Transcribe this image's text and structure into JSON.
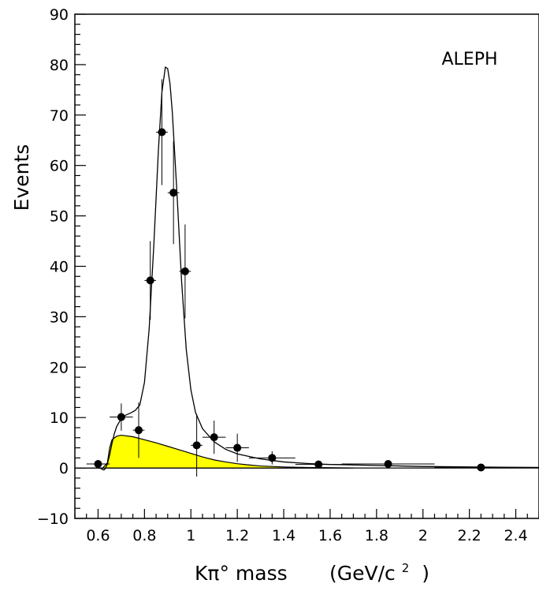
{
  "chart_data": {
    "type": "scatter",
    "title": "",
    "annotation": "ALEPH",
    "xlabel": "Kπ° mass",
    "xlabel_units": "(GeV/c",
    "xlabel_units_sup": "2",
    "xlabel_units_close": ")",
    "ylabel": "Events",
    "xlim": [
      0.5,
      2.5
    ],
    "ylim": [
      -10,
      90
    ],
    "grid": false,
    "x_ticks": [
      0.6,
      0.8,
      1,
      1.2,
      1.4,
      1.6,
      1.8,
      2,
      2.2,
      2.4
    ],
    "x_tick_labels": [
      "0.6",
      "0.8",
      "1",
      "1.2",
      "1.4",
      "1.6",
      "1.8",
      "2",
      "2.2",
      "2.4"
    ],
    "y_ticks": [
      -10,
      0,
      10,
      20,
      30,
      40,
      50,
      60,
      70,
      80,
      90
    ],
    "y_tick_labels": [
      "−10",
      "0",
      "10",
      "20",
      "30",
      "40",
      "50",
      "60",
      "70",
      "80",
      "90"
    ],
    "series": [
      {
        "type": "points_with_errors",
        "points": [
          {
            "x": 0.6,
            "y": 0.8,
            "xerr": 0.05,
            "yerr": 0.6
          },
          {
            "x": 0.7,
            "y": 10.1,
            "xerr": 0.05,
            "yerr": 2.7
          },
          {
            "x": 0.775,
            "y": 7.5,
            "xerr": 0.025,
            "yerr": 5.5
          },
          {
            "x": 0.825,
            "y": 37.2,
            "xerr": 0.025,
            "yerr": 7.8
          },
          {
            "x": 0.875,
            "y": 66.6,
            "xerr": 0.025,
            "yerr": 10.5
          },
          {
            "x": 0.925,
            "y": 54.6,
            "xerr": 0.025,
            "yerr": 10.2
          },
          {
            "x": 0.975,
            "y": 39.0,
            "xerr": 0.025,
            "yerr": 9.3
          },
          {
            "x": 1.025,
            "y": 4.5,
            "xerr": 0.025,
            "yerr": 6.2
          },
          {
            "x": 1.1,
            "y": 6.1,
            "xerr": 0.05,
            "yerr": 3.3
          },
          {
            "x": 1.2,
            "y": 4.0,
            "xerr": 0.05,
            "yerr": 2.8
          },
          {
            "x": 1.35,
            "y": 2.0,
            "xerr": 0.1,
            "yerr": 1.3
          },
          {
            "x": 1.55,
            "y": 0.7,
            "xerr": 0.1,
            "yerr": 0.8
          },
          {
            "x": 1.85,
            "y": 0.8,
            "xerr": 0.2,
            "yerr": 0.4
          },
          {
            "x": 2.25,
            "y": 0.1,
            "xerr": 0.2,
            "yerr": 0.2
          }
        ]
      },
      {
        "type": "fit_curve",
        "points": [
          [
            0.5,
            0.0
          ],
          [
            0.6,
            0.0
          ],
          [
            0.61,
            -0.05
          ],
          [
            0.62,
            -0.3
          ],
          [
            0.625,
            -0.4
          ],
          [
            0.63,
            -0.2
          ],
          [
            0.64,
            0.8
          ],
          [
            0.65,
            2.6
          ],
          [
            0.66,
            4.9
          ],
          [
            0.67,
            6.8
          ],
          [
            0.68,
            8.2
          ],
          [
            0.7,
            9.8
          ],
          [
            0.72,
            10.5
          ],
          [
            0.74,
            10.9
          ],
          [
            0.76,
            11.4
          ],
          [
            0.78,
            12.5
          ],
          [
            0.8,
            17.0
          ],
          [
            0.82,
            27.5
          ],
          [
            0.84,
            44.0
          ],
          [
            0.86,
            63.0
          ],
          [
            0.875,
            74.5
          ],
          [
            0.89,
            79.5
          ],
          [
            0.9,
            79.2
          ],
          [
            0.91,
            76.2
          ],
          [
            0.92,
            70.5
          ],
          [
            0.94,
            54.5
          ],
          [
            0.96,
            37.0
          ],
          [
            0.98,
            23.5
          ],
          [
            1.0,
            15.5
          ],
          [
            1.02,
            11.0
          ],
          [
            1.05,
            7.8
          ],
          [
            1.1,
            5.2
          ],
          [
            1.15,
            3.7
          ],
          [
            1.2,
            2.8
          ],
          [
            1.3,
            1.8
          ],
          [
            1.4,
            1.2
          ],
          [
            1.5,
            0.9
          ],
          [
            1.6,
            0.7
          ],
          [
            1.8,
            0.5
          ],
          [
            2.0,
            0.3
          ],
          [
            2.2,
            0.2
          ],
          [
            2.5,
            0.1
          ]
        ]
      },
      {
        "type": "background_area",
        "color": "#ffff00",
        "points": [
          [
            0.62,
            0.0
          ],
          [
            0.64,
            1.0
          ],
          [
            0.65,
            4.0
          ],
          [
            0.66,
            5.6
          ],
          [
            0.68,
            6.3
          ],
          [
            0.7,
            6.5
          ],
          [
            0.75,
            6.2
          ],
          [
            0.8,
            5.6
          ],
          [
            0.85,
            5.0
          ],
          [
            0.9,
            4.3
          ],
          [
            0.95,
            3.6
          ],
          [
            1.0,
            2.9
          ],
          [
            1.05,
            2.2
          ],
          [
            1.1,
            1.6
          ],
          [
            1.15,
            1.2
          ],
          [
            1.2,
            0.85
          ],
          [
            1.25,
            0.6
          ],
          [
            1.3,
            0.4
          ],
          [
            1.4,
            0.2
          ],
          [
            1.5,
            0.1
          ],
          [
            1.6,
            0.05
          ],
          [
            1.7,
            0.0
          ]
        ]
      }
    ]
  }
}
